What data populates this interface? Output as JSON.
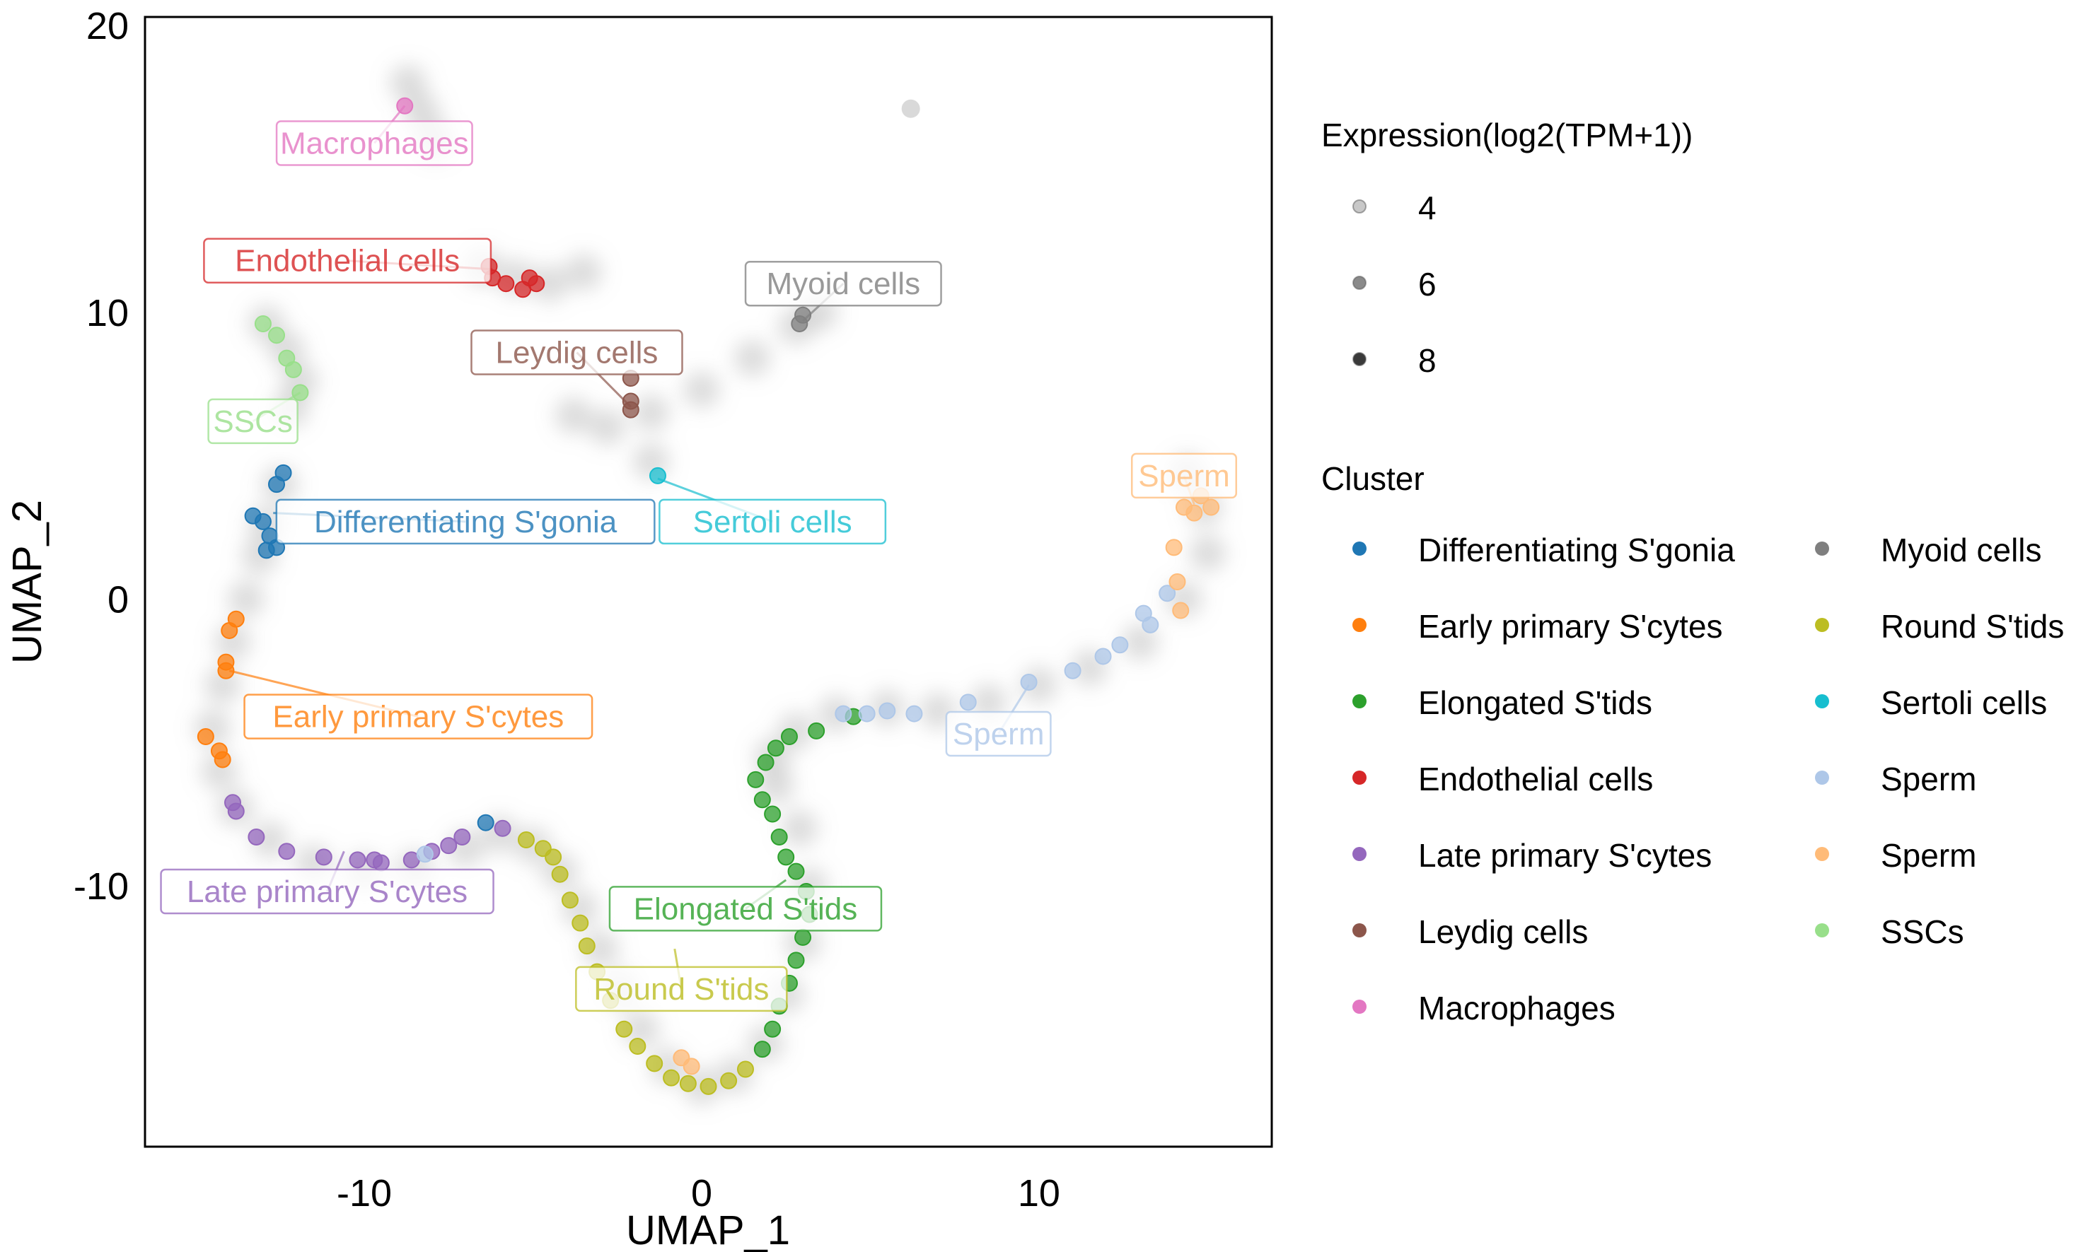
{
  "chart_data": {
    "type": "scatter",
    "title": "",
    "xlabel": "UMAP_1",
    "ylabel": "UMAP_2",
    "xlim": [
      -16.5,
      16.9
    ],
    "ylim": [
      -19.1,
      20.3
    ],
    "xticks": [
      -10,
      0,
      10
    ],
    "yticks": [
      -10,
      0,
      10,
      20
    ],
    "xtick_labels": [
      "-10",
      "0",
      "10"
    ],
    "ytick_labels": [
      "-10",
      "0",
      "10",
      "20"
    ],
    "grid": false,
    "legend_placement": "right",
    "expression_legend": {
      "title": "Expression(log2(TPM+1))",
      "levels": [
        {
          "label": "4",
          "color": "#c8c8c8"
        },
        {
          "label": "6",
          "color": "#8a8a8a"
        },
        {
          "label": "8",
          "color": "#3a3a3a"
        }
      ]
    },
    "cluster_legend": {
      "title": "Cluster",
      "entries": [
        {
          "name": "Differentiating S'gonia",
          "color": "#1f77b4"
        },
        {
          "name": "Early primary S'cytes",
          "color": "#ff7f0e"
        },
        {
          "name": "Elongated S'tids",
          "color": "#2ca02c"
        },
        {
          "name": "Endothelial cells",
          "color": "#d62728"
        },
        {
          "name": "Late primary S'cytes",
          "color": "#9467bd"
        },
        {
          "name": "Leydig cells",
          "color": "#8c564b"
        },
        {
          "name": "Macrophages",
          "color": "#e377c2"
        },
        {
          "name": "Myoid cells",
          "color": "#7f7f7f"
        },
        {
          "name": "Round S'tids",
          "color": "#bcbd22"
        },
        {
          "name": "Sertoli cells",
          "color": "#17becf"
        },
        {
          "name": "Sperm",
          "color": "#aec7e8"
        },
        {
          "name": "Sperm",
          "color": "#ffbb78"
        },
        {
          "name": "SSCs",
          "color": "#98df8a"
        }
      ]
    },
    "labels": [
      {
        "text": "Macrophages",
        "color": "#e377c2",
        "x": -9.7,
        "y": 15.9,
        "px": -8.8,
        "py": 17.2
      },
      {
        "text": "Endothelial cells",
        "color": "#d62728",
        "x": -10.5,
        "y": 11.8,
        "px": -6.2,
        "py": 11.5
      },
      {
        "text": "Myoid cells",
        "color": "#7f7f7f",
        "x": 4.2,
        "y": 11.0,
        "px": 3.0,
        "py": 9.7
      },
      {
        "text": "Leydig cells",
        "color": "#8c564b",
        "x": -3.7,
        "y": 8.6,
        "px": -2.1,
        "py": 6.7
      },
      {
        "text": "SSCs",
        "color": "#98df8a",
        "x": -13.3,
        "y": 6.2,
        "px": -11.9,
        "py": 7.2
      },
      {
        "text": "Differentiating S'gonia",
        "color": "#1f77b4",
        "x": -7.0,
        "y": 2.7,
        "px": -12.7,
        "py": 3.0
      },
      {
        "text": "Sertoli cells",
        "color": "#17becf",
        "x": 2.1,
        "y": 2.7,
        "px": -1.3,
        "py": 4.2
      },
      {
        "text": "Sperm",
        "color": "#ffbb78",
        "x": 14.3,
        "y": 4.3,
        "px": 14.6,
        "py": 3.3
      },
      {
        "text": "Early primary S'cytes",
        "color": "#ff7f0e",
        "x": -8.4,
        "y": -4.1,
        "px": -14.0,
        "py": -2.5
      },
      {
        "text": "Sperm",
        "color": "#aec7e8",
        "x": 8.8,
        "y": -4.7,
        "px": 9.7,
        "py": -3.0
      },
      {
        "text": "Late primary S'cytes",
        "color": "#9467bd",
        "x": -11.1,
        "y": -10.2,
        "px": -10.6,
        "py": -8.8
      },
      {
        "text": "Elongated S'tids",
        "color": "#2ca02c",
        "x": 1.3,
        "y": -10.8,
        "px": 2.5,
        "py": -9.8
      },
      {
        "text": "Round S'tids",
        "color": "#bcbd22",
        "x": -0.6,
        "y": -13.6,
        "px": -0.8,
        "py": -12.2
      }
    ],
    "background_trajectory": [
      [
        -8.7,
        18.0
      ],
      [
        -8.3,
        17.0
      ],
      [
        -7.9,
        16.0
      ],
      [
        -6.5,
        11.6
      ],
      [
        -5.5,
        11.2
      ],
      [
        -4.5,
        11.0
      ],
      [
        -3.5,
        11.4
      ],
      [
        -12.9,
        9.6
      ],
      [
        -12.3,
        8.7
      ],
      [
        -11.9,
        7.6
      ],
      [
        -12.2,
        6.6
      ],
      [
        -3.8,
        6.4
      ],
      [
        -2.8,
        6.0
      ],
      [
        -1.5,
        6.5
      ],
      [
        0.0,
        7.3
      ],
      [
        1.5,
        8.4
      ],
      [
        2.8,
        9.5
      ],
      [
        3.5,
        10.0
      ],
      [
        -1.5,
        4.8
      ],
      [
        -12.5,
        4.0
      ],
      [
        -12.9,
        2.6
      ],
      [
        -13.1,
        1.5
      ],
      [
        -13.5,
        0.0
      ],
      [
        -13.9,
        -1.5
      ],
      [
        -14.2,
        -3.0
      ],
      [
        -14.5,
        -4.5
      ],
      [
        -14.3,
        -6.0
      ],
      [
        -13.8,
        -7.3
      ],
      [
        -12.8,
        -8.4
      ],
      [
        -11.5,
        -9.2
      ],
      [
        -10.0,
        -9.5
      ],
      [
        -8.5,
        -9.4
      ],
      [
        -7.0,
        -8.7
      ],
      [
        -6.0,
        -8.2
      ],
      [
        -5.0,
        -8.6
      ],
      [
        -4.2,
        -9.5
      ],
      [
        -3.6,
        -10.8
      ],
      [
        -3.0,
        -12.2
      ],
      [
        -2.4,
        -13.6
      ],
      [
        -1.8,
        -15.0
      ],
      [
        -1.0,
        -16.3
      ],
      [
        0.0,
        -17.0
      ],
      [
        1.0,
        -16.6
      ],
      [
        1.9,
        -15.5
      ],
      [
        2.5,
        -13.8
      ],
      [
        3.0,
        -12.0
      ],
      [
        3.2,
        -10.0
      ],
      [
        2.9,
        -8.0
      ],
      [
        2.2,
        -6.5
      ],
      [
        2.1,
        -5.5
      ],
      [
        2.8,
        -4.6
      ],
      [
        4.0,
        -4.0
      ],
      [
        5.5,
        -3.8
      ],
      [
        7.0,
        -3.9
      ],
      [
        8.5,
        -3.6
      ],
      [
        10.0,
        -3.0
      ],
      [
        11.5,
        -2.4
      ],
      [
        13.0,
        -1.5
      ],
      [
        14.3,
        0.0
      ],
      [
        15.0,
        1.6
      ],
      [
        14.9,
        3.2
      ],
      [
        14.4,
        4.4
      ]
    ],
    "points": [
      {
        "cluster": "Macrophages",
        "x": -8.8,
        "y": 17.2
      },
      {
        "cluster": "Endothelial cells",
        "x": -6.3,
        "y": 11.6
      },
      {
        "cluster": "Endothelial cells",
        "x": -6.2,
        "y": 11.2
      },
      {
        "cluster": "Endothelial cells",
        "x": -5.8,
        "y": 11.0
      },
      {
        "cluster": "Endothelial cells",
        "x": -5.3,
        "y": 10.8
      },
      {
        "cluster": "Endothelial cells",
        "x": -5.1,
        "y": 11.2
      },
      {
        "cluster": "Endothelial cells",
        "x": -4.9,
        "y": 11.0
      },
      {
        "cluster": "Myoid cells",
        "x": 2.9,
        "y": 9.6
      },
      {
        "cluster": "Myoid cells",
        "x": 3.0,
        "y": 9.9
      },
      {
        "cluster": "Leydig cells",
        "x": -2.1,
        "y": 6.6
      },
      {
        "cluster": "Leydig cells",
        "x": -2.1,
        "y": 6.9
      },
      {
        "cluster": "Leydig cells",
        "x": -2.1,
        "y": 7.7
      },
      {
        "cluster": "Sertoli cells",
        "x": -1.3,
        "y": 4.3
      },
      {
        "cluster": "SSCs",
        "x": -13.0,
        "y": 9.6
      },
      {
        "cluster": "SSCs",
        "x": -12.6,
        "y": 9.2
      },
      {
        "cluster": "SSCs",
        "x": -12.3,
        "y": 8.4
      },
      {
        "cluster": "SSCs",
        "x": -12.1,
        "y": 8.0
      },
      {
        "cluster": "SSCs",
        "x": -11.9,
        "y": 7.2
      },
      {
        "cluster": "Differentiating S'gonia",
        "x": -12.4,
        "y": 4.4
      },
      {
        "cluster": "Differentiating S'gonia",
        "x": -12.6,
        "y": 4.0
      },
      {
        "cluster": "Differentiating S'gonia",
        "x": -13.3,
        "y": 2.9
      },
      {
        "cluster": "Differentiating S'gonia",
        "x": -13.0,
        "y": 2.7
      },
      {
        "cluster": "Differentiating S'gonia",
        "x": -12.8,
        "y": 2.2
      },
      {
        "cluster": "Differentiating S'gonia",
        "x": -12.6,
        "y": 1.8
      },
      {
        "cluster": "Differentiating S'gonia",
        "x": -12.9,
        "y": 1.7
      },
      {
        "cluster": "Differentiating S'gonia",
        "x": -6.4,
        "y": -7.8
      },
      {
        "cluster": "Early primary S'cytes",
        "x": -13.8,
        "y": -0.7
      },
      {
        "cluster": "Early primary S'cytes",
        "x": -14.0,
        "y": -1.1
      },
      {
        "cluster": "Early primary S'cytes",
        "x": -14.1,
        "y": -2.2
      },
      {
        "cluster": "Early primary S'cytes",
        "x": -14.1,
        "y": -2.5
      },
      {
        "cluster": "Early primary S'cytes",
        "x": -14.7,
        "y": -4.8
      },
      {
        "cluster": "Early primary S'cytes",
        "x": -14.3,
        "y": -5.3
      },
      {
        "cluster": "Early primary S'cytes",
        "x": -14.2,
        "y": -5.6
      },
      {
        "cluster": "Late primary S'cytes",
        "x": -13.9,
        "y": -7.1
      },
      {
        "cluster": "Late primary S'cytes",
        "x": -13.8,
        "y": -7.4
      },
      {
        "cluster": "Late primary S'cytes",
        "x": -13.2,
        "y": -8.3
      },
      {
        "cluster": "Late primary S'cytes",
        "x": -12.3,
        "y": -8.8
      },
      {
        "cluster": "Late primary S'cytes",
        "x": -11.2,
        "y": -9.0
      },
      {
        "cluster": "Late primary S'cytes",
        "x": -10.2,
        "y": -9.1
      },
      {
        "cluster": "Late primary S'cytes",
        "x": -9.7,
        "y": -9.1
      },
      {
        "cluster": "Late primary S'cytes",
        "x": -9.5,
        "y": -9.2
      },
      {
        "cluster": "Late primary S'cytes",
        "x": -8.6,
        "y": -9.1
      },
      {
        "cluster": "Late primary S'cytes",
        "x": -8.0,
        "y": -8.8
      },
      {
        "cluster": "Late primary S'cytes",
        "x": -7.5,
        "y": -8.6
      },
      {
        "cluster": "Late primary S'cytes",
        "x": -7.1,
        "y": -8.3
      },
      {
        "cluster": "Late primary S'cytes",
        "x": -5.9,
        "y": -8.0
      },
      {
        "cluster": "Sperm",
        "x": -8.2,
        "y": -8.9
      },
      {
        "cluster": "Round S'tids",
        "x": -5.2,
        "y": -8.4
      },
      {
        "cluster": "Round S'tids",
        "x": -4.7,
        "y": -8.7
      },
      {
        "cluster": "Round S'tids",
        "x": -4.4,
        "y": -9.0
      },
      {
        "cluster": "Round S'tids",
        "x": -4.2,
        "y": -9.6
      },
      {
        "cluster": "Round S'tids",
        "x": -3.9,
        "y": -10.5
      },
      {
        "cluster": "Round S'tids",
        "x": -3.6,
        "y": -11.3
      },
      {
        "cluster": "Round S'tids",
        "x": -3.4,
        "y": -12.1
      },
      {
        "cluster": "Round S'tids",
        "x": -3.1,
        "y": -13.0
      },
      {
        "cluster": "Round S'tids",
        "x": -2.7,
        "y": -14.0
      },
      {
        "cluster": "Round S'tids",
        "x": -2.3,
        "y": -15.0
      },
      {
        "cluster": "Round S'tids",
        "x": -1.9,
        "y": -15.6
      },
      {
        "cluster": "Round S'tids",
        "x": -1.4,
        "y": -16.2
      },
      {
        "cluster": "Round S'tids",
        "x": -0.9,
        "y": -16.7
      },
      {
        "cluster": "Round S'tids",
        "x": -0.4,
        "y": -16.9
      },
      {
        "cluster": "Round S'tids",
        "x": 0.2,
        "y": -17.0
      },
      {
        "cluster": "Round S'tids",
        "x": 0.8,
        "y": -16.8
      },
      {
        "cluster": "Round S'tids",
        "x": 1.3,
        "y": -16.4
      },
      {
        "cluster": "Sperm2",
        "x": -0.6,
        "y": -16.0
      },
      {
        "cluster": "Sperm2",
        "x": -0.3,
        "y": -16.3
      },
      {
        "cluster": "Elongated S'tids",
        "x": 1.8,
        "y": -15.7
      },
      {
        "cluster": "Elongated S'tids",
        "x": 2.1,
        "y": -15.0
      },
      {
        "cluster": "Elongated S'tids",
        "x": 2.3,
        "y": -14.2
      },
      {
        "cluster": "Elongated S'tids",
        "x": 2.6,
        "y": -13.4
      },
      {
        "cluster": "Elongated S'tids",
        "x": 2.8,
        "y": -12.6
      },
      {
        "cluster": "Elongated S'tids",
        "x": 3.0,
        "y": -11.8
      },
      {
        "cluster": "Elongated S'tids",
        "x": 3.2,
        "y": -11.0
      },
      {
        "cluster": "Elongated S'tids",
        "x": 3.1,
        "y": -10.2
      },
      {
        "cluster": "Elongated S'tids",
        "x": 2.8,
        "y": -9.5
      },
      {
        "cluster": "Elongated S'tids",
        "x": 2.5,
        "y": -9.0
      },
      {
        "cluster": "Elongated S'tids",
        "x": 2.3,
        "y": -8.3
      },
      {
        "cluster": "Elongated S'tids",
        "x": 2.1,
        "y": -7.5
      },
      {
        "cluster": "Elongated S'tids",
        "x": 1.8,
        "y": -7.0
      },
      {
        "cluster": "Elongated S'tids",
        "x": 1.6,
        "y": -6.3
      },
      {
        "cluster": "Elongated S'tids",
        "x": 1.9,
        "y": -5.7
      },
      {
        "cluster": "Elongated S'tids",
        "x": 2.2,
        "y": -5.2
      },
      {
        "cluster": "Elongated S'tids",
        "x": 2.6,
        "y": -4.8
      },
      {
        "cluster": "Elongated S'tids",
        "x": 3.4,
        "y": -4.6
      },
      {
        "cluster": "Elongated S'tids",
        "x": 4.5,
        "y": -4.1
      },
      {
        "cluster": "Sperm",
        "x": 4.2,
        "y": -4.0
      },
      {
        "cluster": "Sperm",
        "x": 4.9,
        "y": -4.0
      },
      {
        "cluster": "Sperm",
        "x": 5.5,
        "y": -3.9
      },
      {
        "cluster": "Sperm",
        "x": 6.3,
        "y": -4.0
      },
      {
        "cluster": "Sperm",
        "x": 7.9,
        "y": -3.6
      },
      {
        "cluster": "Sperm",
        "x": 9.7,
        "y": -2.9
      },
      {
        "cluster": "Sperm",
        "x": 11.0,
        "y": -2.5
      },
      {
        "cluster": "Sperm",
        "x": 11.9,
        "y": -2.0
      },
      {
        "cluster": "Sperm",
        "x": 12.4,
        "y": -1.6
      },
      {
        "cluster": "Sperm",
        "x": 13.3,
        "y": -0.9
      },
      {
        "cluster": "Sperm",
        "x": 13.8,
        "y": 0.2
      },
      {
        "cluster": "Sperm",
        "x": 13.1,
        "y": -0.5
      },
      {
        "cluster": "Sperm2",
        "x": 14.1,
        "y": 0.6
      },
      {
        "cluster": "Sperm2",
        "x": 14.0,
        "y": 1.8
      },
      {
        "cluster": "Sperm2",
        "x": 14.6,
        "y": 3.0
      },
      {
        "cluster": "Sperm2",
        "x": 14.3,
        "y": 3.2
      },
      {
        "cluster": "Sperm2",
        "x": 15.1,
        "y": 3.2
      },
      {
        "cluster": "Sperm2",
        "x": 14.8,
        "y": 3.6
      },
      {
        "cluster": "Sperm2",
        "x": 14.2,
        "y": -0.4
      }
    ]
  }
}
